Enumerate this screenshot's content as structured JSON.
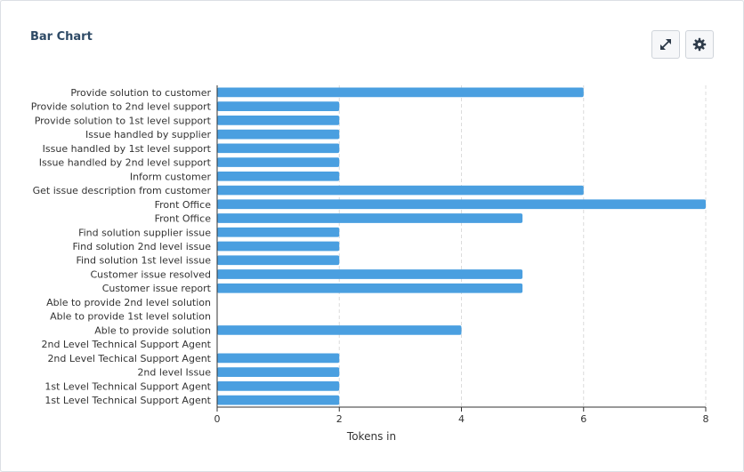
{
  "panel": {
    "title": "Bar Chart",
    "expand_icon": "expand-arrows-icon",
    "settings_icon": "gear-icon"
  },
  "colors": {
    "bar": "#4a9fe0",
    "grid": "#dcdcdc",
    "axis": "#333333",
    "text": "#333333",
    "title": "#2e4a66"
  },
  "chart_data": {
    "type": "bar",
    "orientation": "horizontal",
    "title": "",
    "xlabel": "Tokens in",
    "ylabel": "",
    "xlim": [
      0,
      8
    ],
    "xticks": [
      0,
      2,
      4,
      6,
      8
    ],
    "grid": true,
    "categories": [
      "Provide solution to customer",
      "Provide solution to 2nd level support",
      "Provide solution to 1st level support",
      "Issue handled by supplier",
      "Issue handled by 1st level support",
      "Issue handled by  2nd level support",
      "Inform customer",
      "Get issue description from customer",
      "Front Office",
      "Front Office",
      "Find solution supplier issue",
      "Find solution 2nd level issue",
      "Find solution 1st level issue",
      "Customer issue resolved",
      "Customer issue report",
      "Able to provide  2nd level solution",
      "Able to provide  1st level solution",
      "Able to  provide solution",
      "2nd Level Technical Support Agent",
      "2nd Level Techical Support Agent",
      "2nd level Issue",
      "1st Level Technical Support Agent",
      "1st Level Technical Support Agent"
    ],
    "values": [
      6,
      2,
      2,
      2,
      2,
      2,
      2,
      6,
      8,
      5,
      2,
      2,
      2,
      5,
      5,
      0,
      0,
      4,
      0,
      2,
      2,
      2,
      2
    ]
  }
}
